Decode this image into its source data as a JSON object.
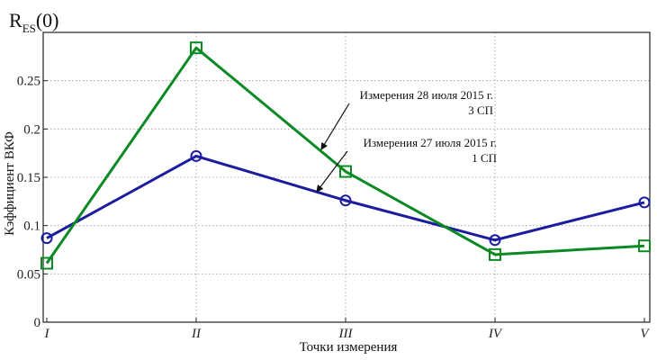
{
  "corner_label": {
    "main": "R",
    "sub": "ES",
    "suffix": "(0)"
  },
  "chart_data": {
    "type": "line",
    "categories": [
      "I",
      "II",
      "III",
      "IV",
      "V"
    ],
    "xlabel": "Точки измерения",
    "ylabel": "Кэффициент ВКФ",
    "ylim": [
      0,
      0.3
    ],
    "yticks": [
      0,
      0.05,
      0.1,
      0.15,
      0.2,
      0.25
    ],
    "ytick_labels": [
      "0",
      "0.05",
      "0.1",
      "0.15",
      "0.2",
      "0.25"
    ],
    "grid": true,
    "series": [
      {
        "color": "#1c1c9e",
        "marker": "circle",
        "values": [
          0.087,
          0.172,
          0.126,
          0.085,
          0.124
        ]
      },
      {
        "color": "#0b8a24",
        "marker": "square",
        "values": [
          0.061,
          0.284,
          0.156,
          0.07,
          0.079
        ]
      }
    ],
    "annotations": [
      {
        "line1": "Измерения 28 июля 2015 г.",
        "line2": "3 СП"
      },
      {
        "line1": "Измерения 27 июля 2015 г.",
        "line2": "1 СП"
      }
    ]
  }
}
